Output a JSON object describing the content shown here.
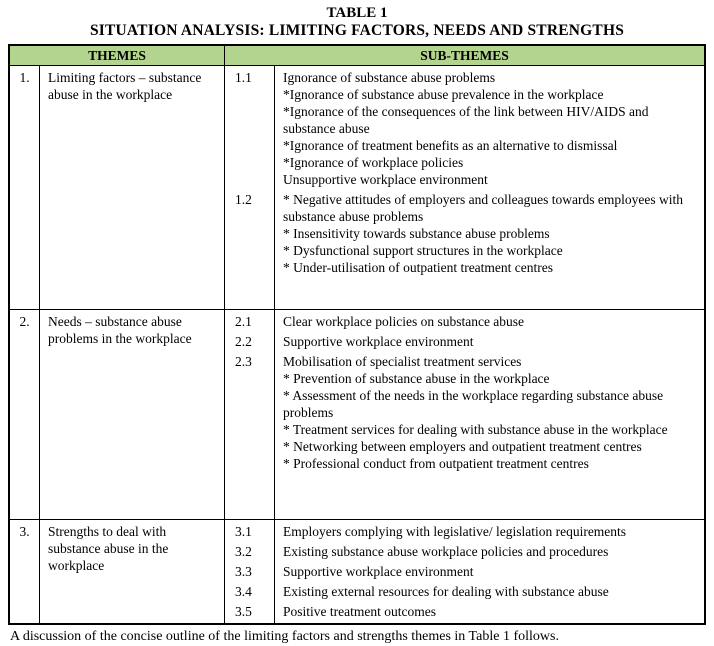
{
  "page": {
    "title": "TABLE 1",
    "subtitle": "SITUATION ANALYSIS: LIMITING FACTORS, NEEDS AND STRENGTHS",
    "footer": "A discussion of the concise outline of the limiting factors and strengths themes in Table 1 follows."
  },
  "colors": {
    "header_bg": "#b2d48f",
    "border": "#000000"
  },
  "header": {
    "themes_label": "THEMES",
    "subthemes_label": "SUB-THEMES"
  },
  "rows": [
    {
      "num": "1.",
      "theme": "Limiting factors – substance abuse in the workplace",
      "groups": [
        {
          "num": "1.1",
          "items": [
            "Ignorance of substance abuse problems",
            "*Ignorance of substance abuse prevalence in the workplace",
            "*Ignorance of the consequences of the link between HIV/AIDS and substance abuse",
            "*Ignorance of treatment benefits as an alternative to dismissal",
            "*Ignorance of workplace policies",
            "Unsupportive workplace environment"
          ]
        },
        {
          "num": "1.2",
          "items": [
            "* Negative attitudes of employers and colleagues towards employees with substance abuse problems",
            "* Insensitivity towards substance abuse problems",
            "* Dysfunctional support structures in the workplace",
            "* Under-utilisation of outpatient treatment centres"
          ]
        }
      ]
    },
    {
      "num": "2.",
      "theme": "Needs – substance abuse problems in the workplace",
      "groups": [
        {
          "num": "2.1",
          "items": [
            "Clear workplace policies on substance abuse"
          ]
        },
        {
          "num": "2.2",
          "items": [
            "Supportive workplace environment"
          ]
        },
        {
          "num": "2.3",
          "items": [
            "Mobilisation of specialist treatment services",
            "* Prevention of substance abuse in the workplace",
            "* Assessment of the needs in the workplace regarding substance abuse problems",
            "* Treatment services for dealing with substance abuse in the workplace",
            "* Networking between employers and outpatient treatment centres",
            "* Professional conduct from outpatient treatment centres"
          ]
        }
      ]
    },
    {
      "num": "3.",
      "theme": "Strengths to deal with substance abuse in the workplace",
      "groups": [
        {
          "num": "3.1",
          "items": [
            "Employers complying with legislative/ legislation requirements"
          ]
        },
        {
          "num": "3.2",
          "items": [
            "Existing substance abuse workplace policies and procedures"
          ]
        },
        {
          "num": "3.3",
          "items": [
            "Supportive workplace environment"
          ]
        },
        {
          "num": "3.4",
          "items": [
            "Existing external resources for dealing with substance abuse"
          ]
        },
        {
          "num": "3.5",
          "items": [
            "Positive treatment outcomes"
          ]
        }
      ]
    }
  ]
}
